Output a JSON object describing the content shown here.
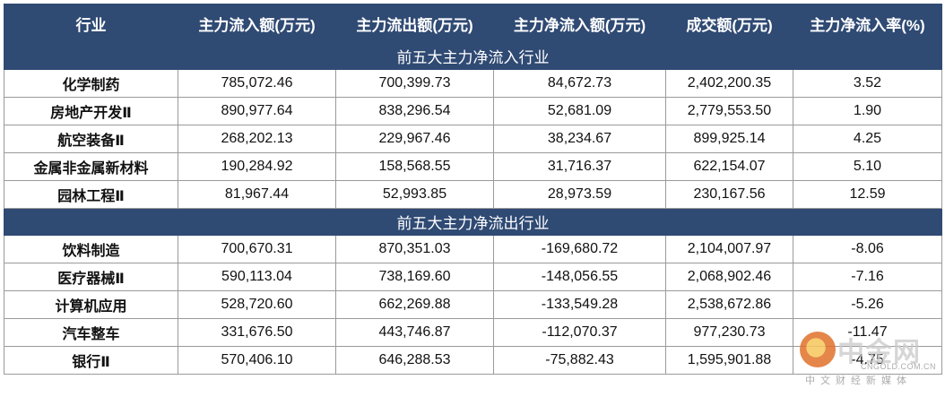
{
  "headers": [
    "行业",
    "主力流入额(万元)",
    "主力流出额(万元)",
    "主力净流入额(万元)",
    "成交额(万元)",
    "主力净流入率(%)"
  ],
  "sections": [
    {
      "title": "前五大主力净流入行业",
      "rows": [
        [
          "化学制药",
          "785,072.46",
          "700,399.73",
          "84,672.73",
          "2,402,200.35",
          "3.52"
        ],
        [
          "房地产开发Ⅱ",
          "890,977.64",
          "838,296.54",
          "52,681.09",
          "2,779,553.50",
          "1.90"
        ],
        [
          "航空装备Ⅱ",
          "268,202.13",
          "229,967.46",
          "38,234.67",
          "899,925.14",
          "4.25"
        ],
        [
          "金属非金属新材料",
          "190,284.92",
          "158,568.55",
          "31,716.37",
          "622,154.07",
          "5.10"
        ],
        [
          "园林工程Ⅱ",
          "81,967.44",
          "52,993.85",
          "28,973.59",
          "230,167.56",
          "12.59"
        ]
      ]
    },
    {
      "title": "前五大主力净流出行业",
      "rows": [
        [
          "饮料制造",
          "700,670.31",
          "870,351.03",
          "-169,680.72",
          "2,104,007.97",
          "-8.06"
        ],
        [
          "医疗器械Ⅱ",
          "590,113.04",
          "738,169.60",
          "-148,056.55",
          "2,068,902.46",
          "-7.16"
        ],
        [
          "计算机应用",
          "528,720.60",
          "662,269.88",
          "-133,549.28",
          "2,538,672.86",
          "-5.26"
        ],
        [
          "汽车整车",
          "331,676.50",
          "443,746.87",
          "-112,070.37",
          "977,230.73",
          "-11.47"
        ],
        [
          "银行Ⅱ",
          "570,406.10",
          "646,288.53",
          "-75,882.43",
          "1,595,901.88",
          "-4.75"
        ]
      ]
    }
  ],
  "watermark": {
    "logo": "cngold-logo",
    "name": "中金网",
    "url": "CNGOLD.COM.CN",
    "tagline": "中文财经新媒体"
  }
}
